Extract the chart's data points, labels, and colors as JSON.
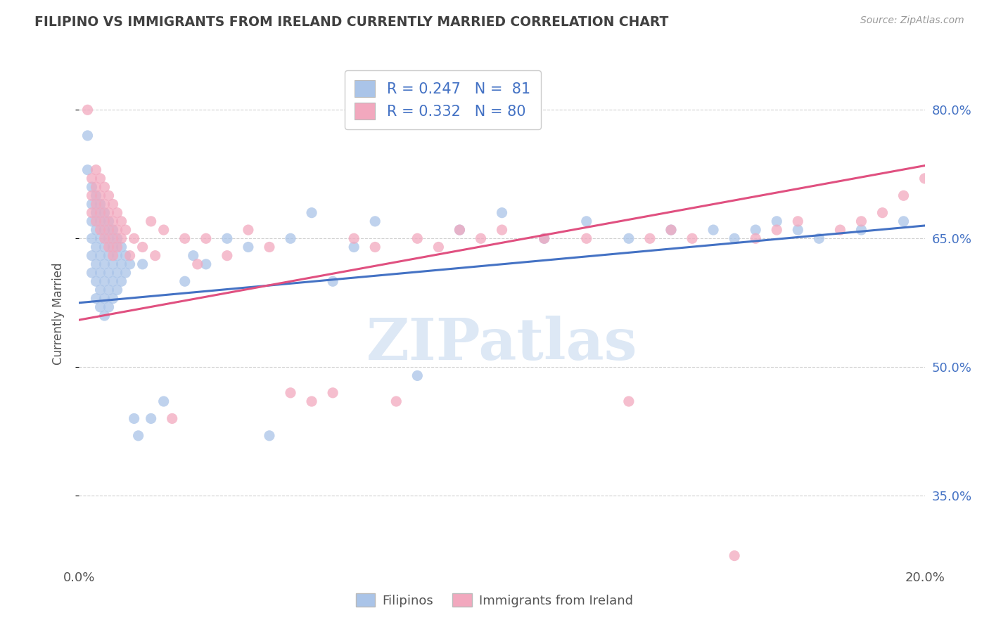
{
  "title": "FILIPINO VS IMMIGRANTS FROM IRELAND CURRENTLY MARRIED CORRELATION CHART",
  "source": "Source: ZipAtlas.com",
  "ylabel": "Currently Married",
  "xlim": [
    0.0,
    0.2
  ],
  "ylim": [
    0.27,
    0.855
  ],
  "yticks": [
    0.35,
    0.5,
    0.65,
    0.8
  ],
  "ytick_labels": [
    "35.0%",
    "50.0%",
    "65.0%",
    "80.0%"
  ],
  "xticks": [
    0.0,
    0.05,
    0.1,
    0.15,
    0.2
  ],
  "xtick_labels": [
    "0.0%",
    "",
    "",
    "",
    "20.0%"
  ],
  "color_blue": "#aac4e8",
  "color_pink": "#f2a8be",
  "line_color_blue": "#4472c4",
  "line_color_pink": "#e05080",
  "watermark": "ZIPatlas",
  "watermark_color": "#dde8f5",
  "background_color": "#ffffff",
  "grid_color": "#d0d0d0",
  "title_color": "#404040",
  "right_ytick_color": "#4472c4",
  "blue_line_x": [
    0.0,
    0.2
  ],
  "blue_line_y": [
    0.575,
    0.665
  ],
  "pink_line_x": [
    0.0,
    0.2
  ],
  "pink_line_y": [
    0.555,
    0.735
  ],
  "blue_scatter": [
    [
      0.002,
      0.77
    ],
    [
      0.002,
      0.73
    ],
    [
      0.003,
      0.71
    ],
    [
      0.003,
      0.69
    ],
    [
      0.003,
      0.67
    ],
    [
      0.003,
      0.65
    ],
    [
      0.003,
      0.63
    ],
    [
      0.003,
      0.61
    ],
    [
      0.004,
      0.7
    ],
    [
      0.004,
      0.68
    ],
    [
      0.004,
      0.66
    ],
    [
      0.004,
      0.64
    ],
    [
      0.004,
      0.62
    ],
    [
      0.004,
      0.6
    ],
    [
      0.004,
      0.58
    ],
    [
      0.005,
      0.69
    ],
    [
      0.005,
      0.67
    ],
    [
      0.005,
      0.65
    ],
    [
      0.005,
      0.63
    ],
    [
      0.005,
      0.61
    ],
    [
      0.005,
      0.59
    ],
    [
      0.005,
      0.57
    ],
    [
      0.006,
      0.68
    ],
    [
      0.006,
      0.66
    ],
    [
      0.006,
      0.64
    ],
    [
      0.006,
      0.62
    ],
    [
      0.006,
      0.6
    ],
    [
      0.006,
      0.58
    ],
    [
      0.006,
      0.56
    ],
    [
      0.007,
      0.67
    ],
    [
      0.007,
      0.65
    ],
    [
      0.007,
      0.63
    ],
    [
      0.007,
      0.61
    ],
    [
      0.007,
      0.59
    ],
    [
      0.007,
      0.57
    ],
    [
      0.008,
      0.66
    ],
    [
      0.008,
      0.64
    ],
    [
      0.008,
      0.62
    ],
    [
      0.008,
      0.6
    ],
    [
      0.008,
      0.58
    ],
    [
      0.009,
      0.65
    ],
    [
      0.009,
      0.63
    ],
    [
      0.009,
      0.61
    ],
    [
      0.009,
      0.59
    ],
    [
      0.01,
      0.64
    ],
    [
      0.01,
      0.62
    ],
    [
      0.01,
      0.6
    ],
    [
      0.011,
      0.63
    ],
    [
      0.011,
      0.61
    ],
    [
      0.012,
      0.62
    ],
    [
      0.013,
      0.44
    ],
    [
      0.014,
      0.42
    ],
    [
      0.015,
      0.62
    ],
    [
      0.017,
      0.44
    ],
    [
      0.02,
      0.46
    ],
    [
      0.025,
      0.6
    ],
    [
      0.027,
      0.63
    ],
    [
      0.03,
      0.62
    ],
    [
      0.035,
      0.65
    ],
    [
      0.04,
      0.64
    ],
    [
      0.045,
      0.42
    ],
    [
      0.05,
      0.65
    ],
    [
      0.055,
      0.68
    ],
    [
      0.06,
      0.6
    ],
    [
      0.065,
      0.64
    ],
    [
      0.07,
      0.67
    ],
    [
      0.08,
      0.49
    ],
    [
      0.09,
      0.66
    ],
    [
      0.1,
      0.68
    ],
    [
      0.11,
      0.65
    ],
    [
      0.12,
      0.67
    ],
    [
      0.13,
      0.65
    ],
    [
      0.14,
      0.66
    ],
    [
      0.15,
      0.66
    ],
    [
      0.155,
      0.65
    ],
    [
      0.16,
      0.66
    ],
    [
      0.165,
      0.67
    ],
    [
      0.17,
      0.66
    ],
    [
      0.175,
      0.65
    ],
    [
      0.185,
      0.66
    ],
    [
      0.195,
      0.67
    ]
  ],
  "pink_scatter": [
    [
      0.002,
      0.8
    ],
    [
      0.003,
      0.72
    ],
    [
      0.003,
      0.7
    ],
    [
      0.003,
      0.68
    ],
    [
      0.004,
      0.73
    ],
    [
      0.004,
      0.71
    ],
    [
      0.004,
      0.69
    ],
    [
      0.004,
      0.67
    ],
    [
      0.005,
      0.72
    ],
    [
      0.005,
      0.7
    ],
    [
      0.005,
      0.68
    ],
    [
      0.005,
      0.66
    ],
    [
      0.006,
      0.71
    ],
    [
      0.006,
      0.69
    ],
    [
      0.006,
      0.67
    ],
    [
      0.006,
      0.65
    ],
    [
      0.007,
      0.7
    ],
    [
      0.007,
      0.68
    ],
    [
      0.007,
      0.66
    ],
    [
      0.007,
      0.64
    ],
    [
      0.008,
      0.69
    ],
    [
      0.008,
      0.67
    ],
    [
      0.008,
      0.65
    ],
    [
      0.008,
      0.63
    ],
    [
      0.009,
      0.68
    ],
    [
      0.009,
      0.66
    ],
    [
      0.009,
      0.64
    ],
    [
      0.01,
      0.67
    ],
    [
      0.01,
      0.65
    ],
    [
      0.011,
      0.66
    ],
    [
      0.012,
      0.63
    ],
    [
      0.013,
      0.65
    ],
    [
      0.015,
      0.64
    ],
    [
      0.017,
      0.67
    ],
    [
      0.018,
      0.63
    ],
    [
      0.02,
      0.66
    ],
    [
      0.022,
      0.44
    ],
    [
      0.025,
      0.65
    ],
    [
      0.028,
      0.62
    ],
    [
      0.03,
      0.65
    ],
    [
      0.035,
      0.63
    ],
    [
      0.04,
      0.66
    ],
    [
      0.045,
      0.64
    ],
    [
      0.05,
      0.47
    ],
    [
      0.055,
      0.46
    ],
    [
      0.06,
      0.47
    ],
    [
      0.065,
      0.65
    ],
    [
      0.07,
      0.64
    ],
    [
      0.075,
      0.46
    ],
    [
      0.08,
      0.65
    ],
    [
      0.085,
      0.64
    ],
    [
      0.09,
      0.66
    ],
    [
      0.095,
      0.65
    ],
    [
      0.1,
      0.66
    ],
    [
      0.11,
      0.65
    ],
    [
      0.12,
      0.65
    ],
    [
      0.13,
      0.46
    ],
    [
      0.135,
      0.65
    ],
    [
      0.14,
      0.66
    ],
    [
      0.145,
      0.65
    ],
    [
      0.155,
      0.28
    ],
    [
      0.16,
      0.65
    ],
    [
      0.165,
      0.66
    ],
    [
      0.17,
      0.67
    ],
    [
      0.18,
      0.66
    ],
    [
      0.185,
      0.67
    ],
    [
      0.19,
      0.68
    ],
    [
      0.195,
      0.7
    ],
    [
      0.2,
      0.72
    ]
  ]
}
